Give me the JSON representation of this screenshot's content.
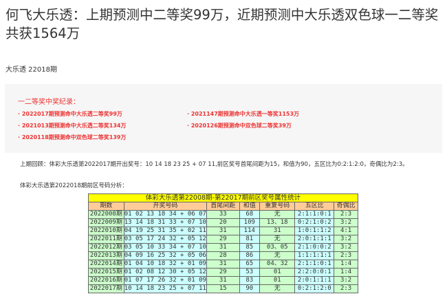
{
  "title": "何飞大乐透：上期预测中二等奖99万，近期预测中大乐透双色球一二等奖共获1564万",
  "subtitle": "大乐透 22018期",
  "records": {
    "heading": "一二等奖中奖纪录：",
    "items": [
      "2022017期预测命中大乐透二等奖99万",
      "2021147期预测命中大乐透一等奖1153万",
      "2021013期预测命中大乐透二等奖134万",
      "2020126期预测命中双色球二等奖39万",
      "2020118期预测命中双色球二等奖139万"
    ]
  },
  "review": "上期回顾：体彩大乐透第2022017期开出奖号：10 14 18 23 25 + 07 11,前区奖号首尾间距为15，和值为90，五区比为0:2:1:2:0，奇偶比为2:3。",
  "analysis": "体彩大乐透第2022018期前区号码分析：",
  "table": {
    "title": "体彩大乐透第22008期-第22017期前区奖号属性统计",
    "headers": [
      "期数",
      "开奖号码",
      "首尾间距",
      "和值",
      "重复号码",
      "五区比",
      "奇偶比"
    ],
    "rows": [
      [
        "2022008期",
        "01 02 13 18 34 + 06 07",
        "33",
        "68",
        "无",
        "2:1:1:0:1",
        "2:3"
      ],
      [
        "2022009期",
        "13 14 18 31 33 + 07 10",
        "20",
        "109",
        "13、18",
        "0:2:1:0:2",
        "3:2"
      ],
      [
        "2022010期",
        "04 19 25 31 35 + 02 11",
        "31",
        "114",
        "31",
        "1:0:1:1:2",
        "4:1"
      ],
      [
        "2022011期",
        "03 05 17 24 32 + 05 12",
        "29",
        "81",
        "无",
        "2:0:1:1:1",
        "3:2"
      ],
      [
        "2022012期",
        "03 05 10 33 34 + 07 10",
        "31",
        "85",
        "03、05",
        "2:1:0:0:2",
        "3:2"
      ],
      [
        "2022013期",
        "04 09 16 25 32 + 05 06",
        "28",
        "86",
        "无",
        "1:1:1:1:1",
        "2:3"
      ],
      [
        "2022014期",
        "01 04 10 18 32 + 01 09",
        "31",
        "65",
        "04、32",
        "2:1:1:0:1",
        "1:4"
      ],
      [
        "2022015期",
        "01 02 08 12 30 + 05 12",
        "29",
        "53",
        "01",
        "2:2:0:0:1",
        "1:4"
      ],
      [
        "2022016期",
        "01 07 17 26 32 + 01 09",
        "31",
        "83",
        "01",
        "2:0:1:1:1",
        "3:2"
      ],
      [
        "2022017期",
        "10 14 18 23 25 + 07 11",
        "15",
        "90",
        "无",
        "0:2:1:2:0",
        "2:3"
      ]
    ]
  }
}
